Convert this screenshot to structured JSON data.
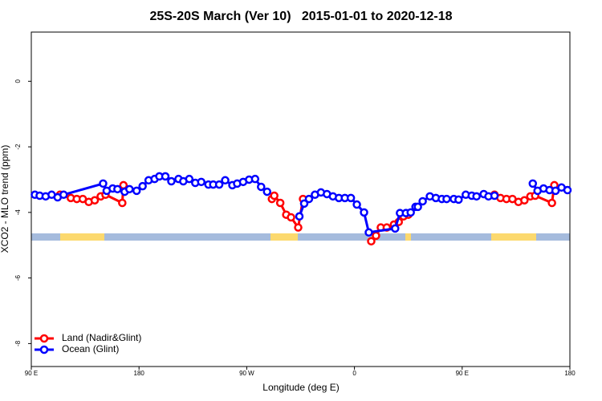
{
  "chart_data": {
    "type": "line",
    "title": "25S-20S March (Ver 10)   2015-01-01 to 2020-12-18",
    "xlabel": "Longitude (deg E)",
    "ylabel": "XCO2 - MLO trend (ppm)",
    "xlim": [
      90,
      540
    ],
    "ylim": [
      -8.7,
      1.5
    ],
    "xticks": [
      {
        "value": 90,
        "label": "90 E"
      },
      180,
      {
        "value": 270,
        "label": "90 W"
      },
      {
        "value": 360,
        "label": "0"
      },
      {
        "value": 450,
        "label": "90 E"
      },
      {
        "value": 540,
        "label": "180"
      }
    ],
    "yticks": [
      0,
      -2,
      -4,
      -6,
      -8
    ],
    "legend": "bottom-left",
    "series": [
      {
        "name": "Land (Nadir&Glint)",
        "color": "#ff0000",
        "x": [
          114,
          123,
          128,
          133,
          138,
          143,
          148,
          152,
          166,
          167,
          null,
          291,
          293,
          298,
          303,
          307,
          313,
          317,
          null,
          374,
          378,
          382,
          387,
          393,
          397,
          401,
          405,
          null,
          477,
          482,
          487,
          492,
          497,
          502,
          507,
          511,
          525,
          527
        ],
        "values": [
          -3.46,
          -3.56,
          -3.59,
          -3.59,
          -3.68,
          -3.63,
          -3.51,
          -3.46,
          -3.71,
          -3.17,
          null,
          -3.59,
          -3.49,
          -3.71,
          -4.07,
          -4.15,
          -4.46,
          -3.59,
          null,
          -4.88,
          -4.71,
          -4.46,
          -4.46,
          -4.37,
          -4.29,
          -4.12,
          -4.07,
          null,
          -3.46,
          -3.56,
          -3.59,
          -3.59,
          -3.68,
          -3.63,
          -3.51,
          -3.49,
          -3.71,
          -3.17
        ]
      },
      {
        "name": "Ocean (Glint)",
        "color": "#0000ff",
        "x": [
          93,
          97,
          102,
          107,
          112,
          117,
          150,
          153,
          158,
          162,
          168,
          172,
          178,
          183,
          188,
          193,
          197,
          202,
          207,
          213,
          217,
          222,
          227,
          232,
          238,
          242,
          247,
          252,
          258,
          262,
          267,
          272,
          277,
          282,
          287,
          null,
          314,
          318,
          322,
          327,
          332,
          337,
          342,
          347,
          352,
          357,
          362,
          368,
          372,
          394,
          398,
          403,
          407,
          411,
          413,
          417,
          423,
          428,
          433,
          437,
          443,
          447,
          453,
          458,
          462,
          468,
          472,
          477,
          null,
          509,
          513,
          518,
          523,
          528,
          533,
          538
        ],
        "values": [
          -3.46,
          -3.49,
          -3.51,
          -3.46,
          -3.54,
          -3.46,
          -3.12,
          -3.34,
          -3.27,
          -3.29,
          -3.37,
          -3.29,
          -3.34,
          -3.2,
          -3.02,
          -2.98,
          -2.9,
          -2.9,
          -3.05,
          -2.98,
          -3.05,
          -2.98,
          -3.1,
          -3.07,
          -3.15,
          -3.15,
          -3.15,
          -3.02,
          -3.17,
          -3.12,
          -3.07,
          -3.0,
          -2.98,
          -3.22,
          -3.37,
          null,
          -4.12,
          -3.73,
          -3.59,
          -3.46,
          -3.39,
          -3.44,
          -3.51,
          -3.56,
          -3.56,
          -3.56,
          -3.76,
          -4.0,
          -4.61,
          -4.49,
          -4.02,
          -4.02,
          -4.0,
          -3.83,
          -3.83,
          -3.66,
          -3.51,
          -3.56,
          -3.59,
          -3.59,
          -3.59,
          -3.61,
          -3.46,
          -3.49,
          -3.51,
          -3.44,
          -3.51,
          -3.49,
          null,
          -3.12,
          -3.34,
          -3.27,
          -3.32,
          -3.34,
          -3.24,
          -3.32
        ]
      }
    ]
  }
}
